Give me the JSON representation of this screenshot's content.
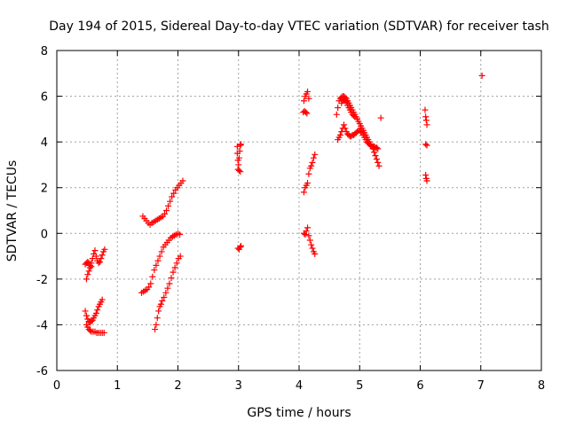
{
  "chart_data": {
    "type": "scatter",
    "title": "Day 194 of 2015, Sidereal Day-to-day VTEC variation (SDTVAR) for receiver tash",
    "xlabel": "GPS time / hours",
    "ylabel": "SDTVAR / TECUs",
    "xlim": [
      0,
      8
    ],
    "ylim": [
      -6,
      8
    ],
    "xticks": [
      0,
      1,
      2,
      3,
      4,
      5,
      6,
      7,
      8
    ],
    "yticks": [
      -6,
      -4,
      -2,
      0,
      2,
      4,
      6,
      8
    ],
    "grid": true,
    "marker": "+",
    "colors": {
      "series": "#ff0000",
      "grid": "#a0a0a0",
      "axis": "#000000"
    },
    "series": [
      {
        "points": [
          [
            0.47,
            -1.35
          ],
          [
            0.49,
            -1.3
          ],
          [
            0.51,
            -1.25
          ],
          [
            0.53,
            -1.3
          ],
          [
            0.55,
            -1.4
          ],
          [
            0.57,
            -1.3
          ],
          [
            0.59,
            -1.1
          ],
          [
            0.61,
            -0.9
          ],
          [
            0.63,
            -0.75
          ],
          [
            0.65,
            -1.0
          ],
          [
            0.67,
            -1.2
          ],
          [
            0.69,
            -1.3
          ],
          [
            0.71,
            -1.25
          ],
          [
            0.73,
            -1.1
          ],
          [
            0.75,
            -0.95
          ],
          [
            0.77,
            -0.8
          ],
          [
            0.79,
            -0.7
          ],
          [
            0.49,
            -2.0
          ],
          [
            0.51,
            -1.8
          ],
          [
            0.53,
            -1.65
          ],
          [
            0.55,
            -1.5
          ],
          [
            0.57,
            -1.45
          ],
          [
            0.47,
            -3.4
          ],
          [
            0.49,
            -3.6
          ],
          [
            0.51,
            -3.75
          ],
          [
            0.53,
            -3.85
          ],
          [
            0.55,
            -3.9
          ],
          [
            0.57,
            -3.85
          ],
          [
            0.59,
            -3.8
          ],
          [
            0.61,
            -3.7
          ],
          [
            0.63,
            -3.6
          ],
          [
            0.65,
            -3.5
          ],
          [
            0.67,
            -3.35
          ],
          [
            0.69,
            -3.2
          ],
          [
            0.71,
            -3.1
          ],
          [
            0.73,
            -3.0
          ],
          [
            0.75,
            -2.9
          ],
          [
            0.49,
            -4.0
          ],
          [
            0.51,
            -4.1
          ],
          [
            0.53,
            -4.2
          ],
          [
            0.55,
            -4.25
          ],
          [
            0.57,
            -4.3
          ],
          [
            0.6,
            -4.3
          ],
          [
            0.63,
            -4.3
          ],
          [
            0.66,
            -4.35
          ],
          [
            0.69,
            -4.35
          ],
          [
            0.72,
            -4.35
          ],
          [
            0.75,
            -4.35
          ],
          [
            0.78,
            -4.35
          ],
          [
            1.42,
            0.75
          ],
          [
            1.45,
            0.65
          ],
          [
            1.48,
            0.55
          ],
          [
            1.51,
            0.45
          ],
          [
            1.54,
            0.38
          ],
          [
            1.57,
            0.45
          ],
          [
            1.6,
            0.5
          ],
          [
            1.63,
            0.55
          ],
          [
            1.66,
            0.6
          ],
          [
            1.69,
            0.65
          ],
          [
            1.72,
            0.7
          ],
          [
            1.75,
            0.75
          ],
          [
            1.78,
            0.85
          ],
          [
            1.81,
            1.0
          ],
          [
            1.84,
            1.2
          ],
          [
            1.87,
            1.4
          ],
          [
            1.9,
            1.6
          ],
          [
            1.93,
            1.75
          ],
          [
            1.96,
            1.9
          ],
          [
            1.99,
            2.0
          ],
          [
            2.02,
            2.1
          ],
          [
            2.05,
            2.2
          ],
          [
            2.08,
            2.3
          ],
          [
            1.4,
            -2.6
          ],
          [
            1.43,
            -2.55
          ],
          [
            1.46,
            -2.5
          ],
          [
            1.49,
            -2.45
          ],
          [
            1.52,
            -2.35
          ],
          [
            1.55,
            -2.2
          ],
          [
            1.58,
            -1.9
          ],
          [
            1.61,
            -1.6
          ],
          [
            1.64,
            -1.4
          ],
          [
            1.67,
            -1.2
          ],
          [
            1.7,
            -1.0
          ],
          [
            1.73,
            -0.8
          ],
          [
            1.76,
            -0.6
          ],
          [
            1.79,
            -0.5
          ],
          [
            1.82,
            -0.4
          ],
          [
            1.85,
            -0.3
          ],
          [
            1.88,
            -0.2
          ],
          [
            1.91,
            -0.15
          ],
          [
            1.94,
            -0.1
          ],
          [
            1.97,
            -0.05
          ],
          [
            2.0,
            0.0
          ],
          [
            2.03,
            -0.05
          ],
          [
            1.62,
            -4.2
          ],
          [
            1.64,
            -4.0
          ],
          [
            1.66,
            -3.7
          ],
          [
            1.68,
            -3.4
          ],
          [
            1.7,
            -3.2
          ],
          [
            1.72,
            -3.1
          ],
          [
            1.74,
            -2.95
          ],
          [
            1.77,
            -2.8
          ],
          [
            1.8,
            -2.6
          ],
          [
            1.83,
            -2.4
          ],
          [
            1.86,
            -2.2
          ],
          [
            1.89,
            -1.95
          ],
          [
            1.92,
            -1.7
          ],
          [
            1.95,
            -1.5
          ],
          [
            1.98,
            -1.3
          ],
          [
            2.01,
            -1.1
          ],
          [
            2.04,
            -1.0
          ],
          [
            2.98,
            3.8
          ],
          [
            2.98,
            3.5
          ],
          [
            2.99,
            3.2
          ],
          [
            3.0,
            3.0
          ],
          [
            3.01,
            3.3
          ],
          [
            3.02,
            3.6
          ],
          [
            3.03,
            3.85
          ],
          [
            3.04,
            3.9
          ],
          [
            2.99,
            2.8
          ],
          [
            3.01,
            2.75
          ],
          [
            3.03,
            2.7
          ],
          [
            2.99,
            -0.65
          ],
          [
            3.01,
            -0.7
          ],
          [
            3.03,
            -0.6
          ],
          [
            3.04,
            -0.55
          ],
          [
            4.07,
            5.3
          ],
          [
            4.09,
            5.35
          ],
          [
            4.11,
            5.3
          ],
          [
            4.13,
            5.25
          ],
          [
            4.08,
            5.8
          ],
          [
            4.1,
            6.0
          ],
          [
            4.12,
            6.1
          ],
          [
            4.14,
            6.2
          ],
          [
            4.16,
            5.9
          ],
          [
            4.08,
            1.8
          ],
          [
            4.1,
            2.0
          ],
          [
            4.12,
            2.1
          ],
          [
            4.14,
            2.2
          ],
          [
            4.16,
            2.6
          ],
          [
            4.18,
            2.85
          ],
          [
            4.2,
            2.95
          ],
          [
            4.22,
            3.1
          ],
          [
            4.24,
            3.3
          ],
          [
            4.26,
            3.45
          ],
          [
            4.08,
            0.0
          ],
          [
            4.1,
            -0.05
          ],
          [
            4.12,
            0.1
          ],
          [
            4.14,
            0.25
          ],
          [
            4.16,
            -0.1
          ],
          [
            4.18,
            -0.3
          ],
          [
            4.2,
            -0.5
          ],
          [
            4.22,
            -0.65
          ],
          [
            4.24,
            -0.8
          ],
          [
            4.26,
            -0.9
          ],
          [
            4.62,
            5.2
          ],
          [
            4.64,
            5.5
          ],
          [
            4.66,
            5.8
          ],
          [
            4.68,
            5.9
          ],
          [
            4.7,
            5.95
          ],
          [
            4.72,
            6.0
          ],
          [
            4.74,
            6.0
          ],
          [
            4.76,
            5.95
          ],
          [
            4.78,
            5.9
          ],
          [
            4.8,
            5.8
          ],
          [
            4.82,
            5.7
          ],
          [
            4.84,
            5.6
          ],
          [
            4.86,
            5.5
          ],
          [
            4.88,
            5.4
          ],
          [
            4.9,
            5.3
          ],
          [
            4.92,
            5.2
          ],
          [
            4.94,
            5.1
          ],
          [
            4.96,
            5.0
          ],
          [
            4.98,
            4.9
          ],
          [
            5.0,
            4.8
          ],
          [
            5.02,
            4.7
          ],
          [
            5.04,
            4.6
          ],
          [
            5.06,
            4.5
          ],
          [
            5.08,
            4.4
          ],
          [
            5.1,
            4.3
          ],
          [
            5.12,
            4.2
          ],
          [
            5.14,
            4.1
          ],
          [
            5.16,
            4.0
          ],
          [
            5.18,
            3.9
          ],
          [
            5.2,
            3.8
          ],
          [
            5.22,
            3.7
          ],
          [
            5.24,
            3.55
          ],
          [
            5.26,
            3.4
          ],
          [
            5.28,
            3.25
          ],
          [
            5.3,
            3.1
          ],
          [
            5.32,
            2.95
          ],
          [
            4.64,
            4.1
          ],
          [
            4.66,
            4.2
          ],
          [
            4.68,
            4.3
          ],
          [
            4.7,
            4.45
          ],
          [
            4.72,
            4.6
          ],
          [
            4.74,
            4.75
          ],
          [
            4.76,
            4.6
          ],
          [
            4.78,
            4.45
          ],
          [
            4.8,
            4.35
          ],
          [
            4.82,
            4.3
          ],
          [
            4.84,
            4.25
          ],
          [
            4.86,
            4.25
          ],
          [
            4.88,
            4.3
          ],
          [
            4.9,
            4.3
          ],
          [
            4.92,
            4.35
          ],
          [
            4.94,
            4.4
          ],
          [
            4.96,
            4.45
          ],
          [
            4.98,
            4.5
          ],
          [
            5.0,
            4.5
          ],
          [
            5.02,
            4.45
          ],
          [
            5.04,
            4.4
          ],
          [
            5.06,
            4.3
          ],
          [
            5.08,
            4.2
          ],
          [
            5.1,
            4.1
          ],
          [
            5.12,
            4.0
          ],
          [
            5.14,
            3.95
          ],
          [
            5.16,
            3.9
          ],
          [
            5.18,
            3.85
          ],
          [
            5.2,
            3.8
          ],
          [
            5.22,
            3.8
          ],
          [
            5.24,
            3.8
          ],
          [
            5.26,
            3.75
          ],
          [
            5.28,
            3.75
          ],
          [
            5.3,
            3.7
          ],
          [
            4.7,
            5.7
          ],
          [
            4.72,
            5.8
          ],
          [
            4.74,
            5.85
          ],
          [
            4.76,
            5.8
          ],
          [
            4.78,
            5.75
          ],
          [
            4.8,
            5.6
          ],
          [
            4.82,
            5.5
          ],
          [
            4.84,
            5.4
          ],
          [
            4.86,
            5.3
          ],
          [
            4.88,
            5.2
          ],
          [
            4.9,
            5.15
          ],
          [
            4.92,
            5.1
          ],
          [
            5.35,
            5.05
          ],
          [
            6.08,
            5.4
          ],
          [
            6.09,
            5.1
          ],
          [
            6.1,
            4.95
          ],
          [
            6.11,
            4.75
          ],
          [
            6.09,
            3.9
          ],
          [
            6.11,
            3.85
          ],
          [
            6.09,
            2.55
          ],
          [
            6.1,
            2.4
          ],
          [
            6.11,
            2.3
          ],
          [
            7.02,
            6.9
          ]
        ]
      }
    ]
  }
}
